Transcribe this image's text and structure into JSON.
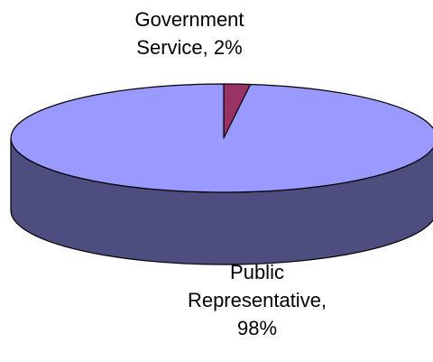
{
  "chart_data": {
    "type": "pie",
    "style": "3d",
    "legend": "none",
    "slices": [
      {
        "label_lines": [
          "Government",
          "Service, 2%"
        ],
        "value": 2,
        "top_color": "#993366",
        "side_color": "#4d1a33"
      },
      {
        "label_lines": [
          "Public",
          "Representative,",
          "98%"
        ],
        "value": 98,
        "top_color": "#9999ff",
        "side_color": "#4d4d80"
      }
    ]
  }
}
